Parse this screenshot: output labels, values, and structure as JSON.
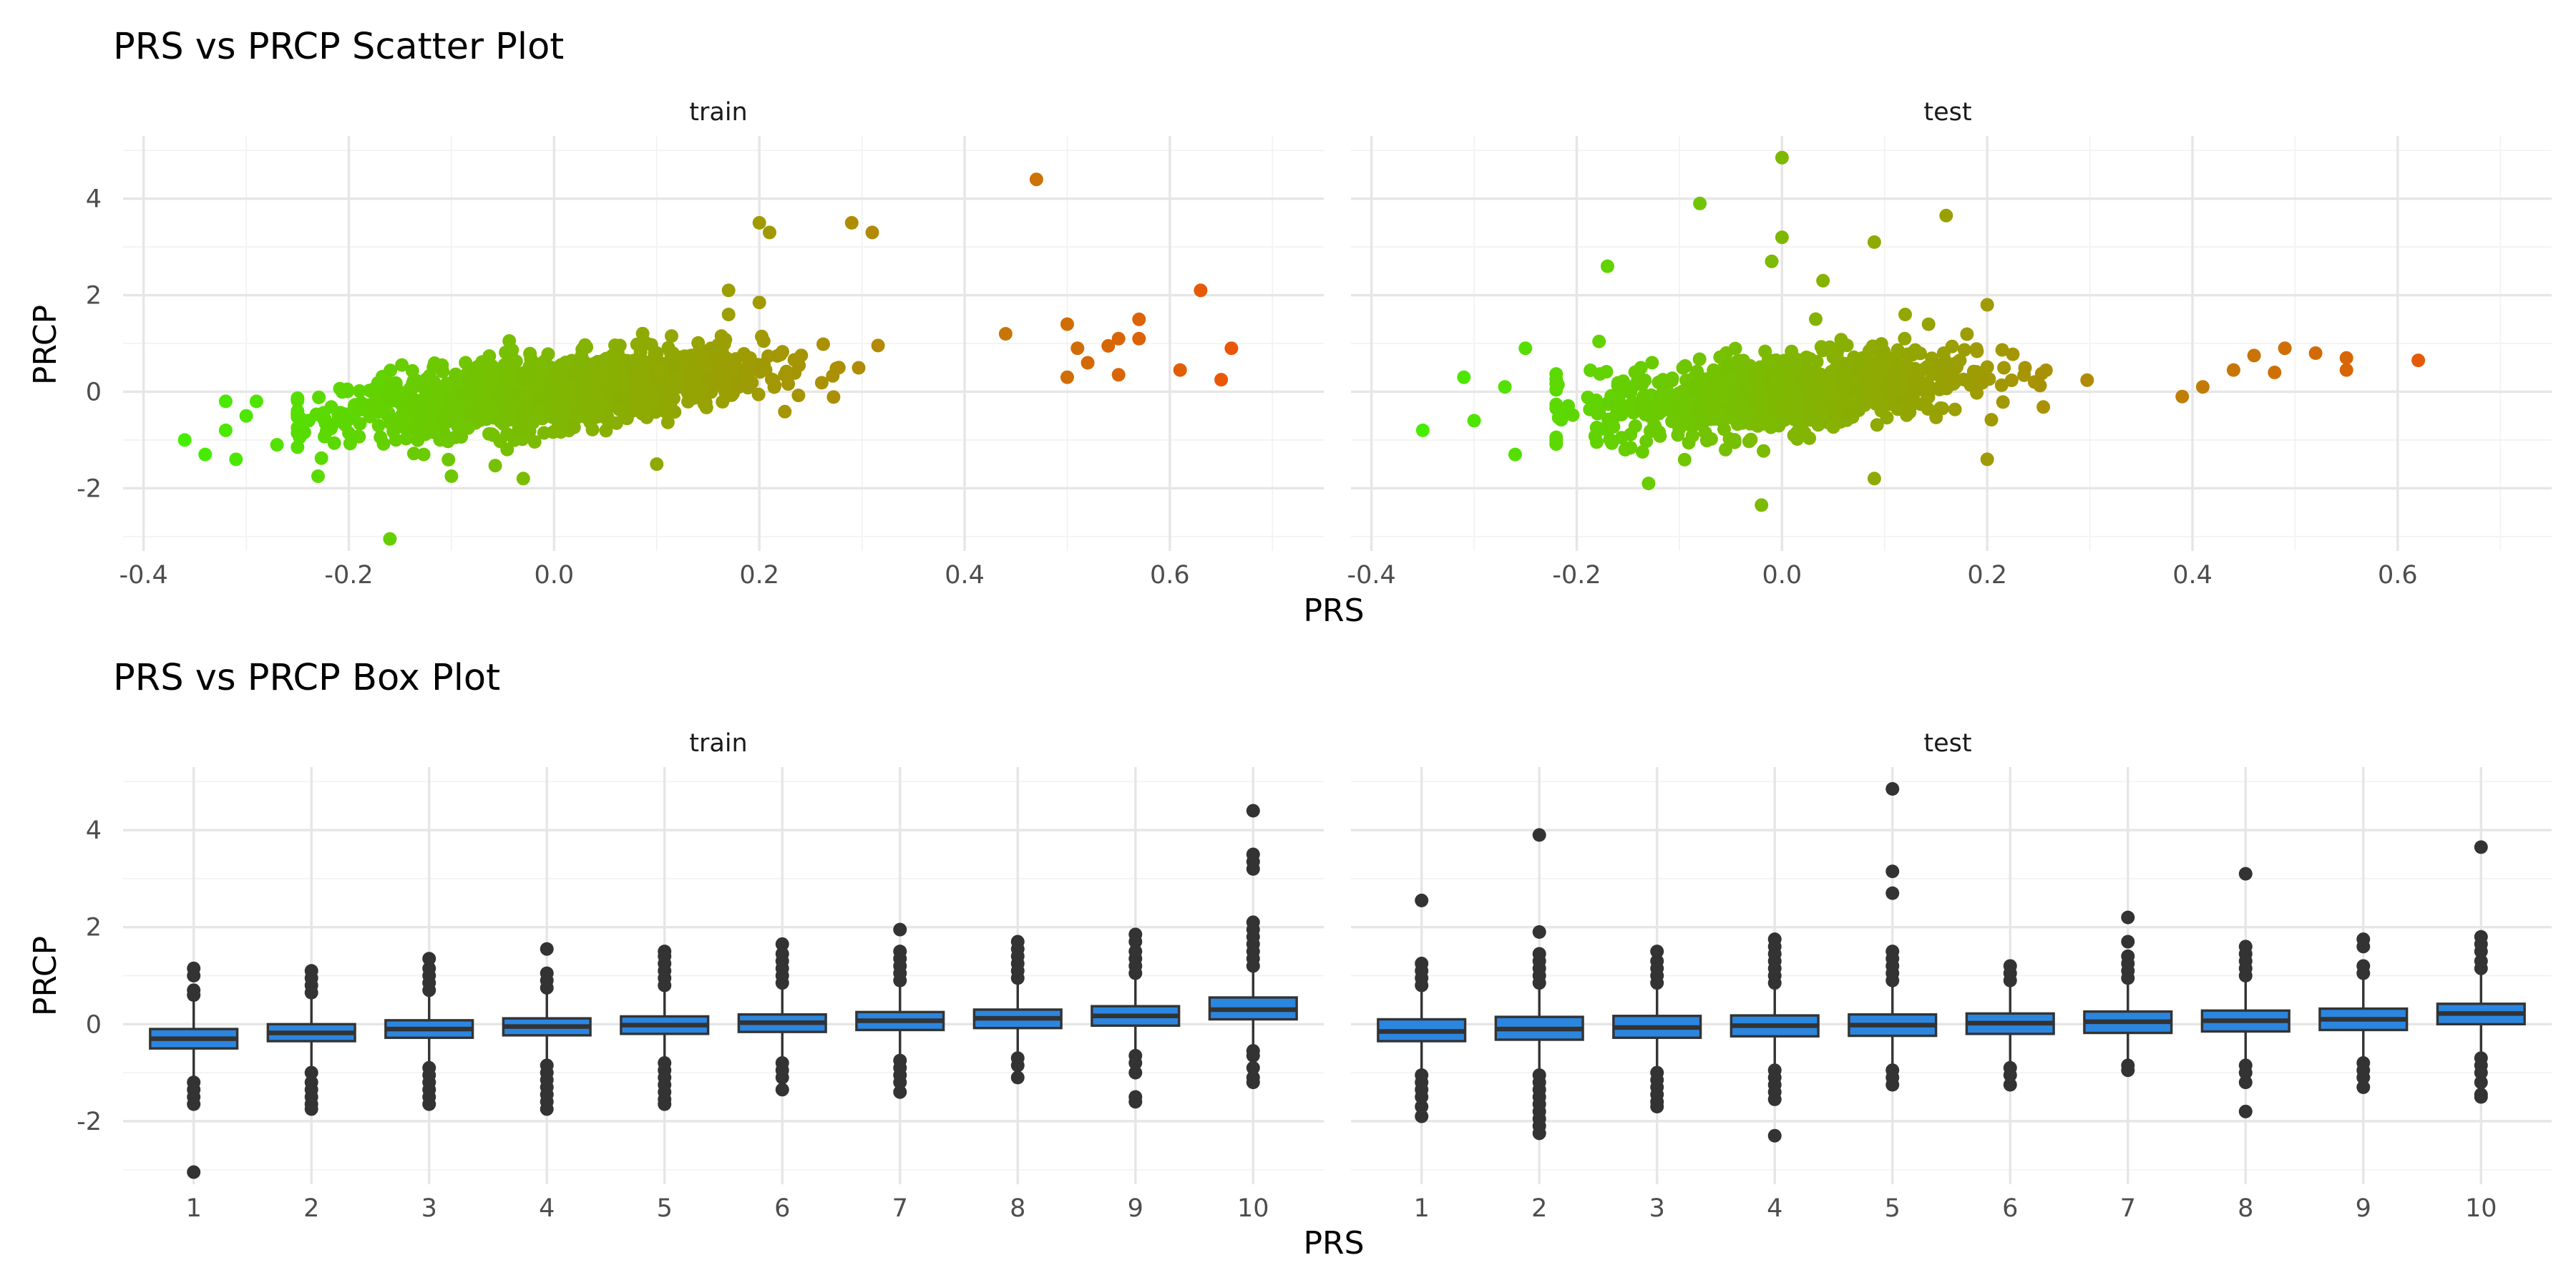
{
  "chart_data": [
    {
      "type": "scatter",
      "title": "PRS vs PRCP Scatter Plot",
      "xlabel": "PRS",
      "ylabel": "PRCP",
      "facets": [
        "train",
        "test"
      ],
      "xlim": [
        -0.42,
        0.75
      ],
      "ylim": [
        -3.3,
        5.3
      ],
      "x_ticks": [
        "-0.4",
        "-0.2",
        "0.0",
        "0.2",
        "0.4",
        "0.6"
      ],
      "y_ticks": [
        "-2",
        "0",
        "2",
        "4"
      ],
      "grid": true,
      "color_gradient": [
        "#44ee00",
        "#eb5507"
      ],
      "trend": {
        "slope": 2.15,
        "intercept": 0.0
      },
      "panels": [
        {
          "name": "train",
          "bulk": {
            "x_range": [
              -0.25,
              0.45
            ],
            "x_mean": 0.0,
            "x_sd": 0.1,
            "y_sd": 0.35,
            "n": 1400
          },
          "points": [
            [
              -0.36,
              -1.0
            ],
            [
              -0.34,
              -1.3
            ],
            [
              -0.32,
              -0.2
            ],
            [
              -0.32,
              -0.8
            ],
            [
              -0.31,
              -1.4
            ],
            [
              -0.3,
              -0.5
            ],
            [
              -0.29,
              -0.2
            ],
            [
              -0.27,
              -1.1
            ],
            [
              -0.23,
              -1.75
            ],
            [
              -0.16,
              -3.05
            ],
            [
              -0.1,
              -1.75
            ],
            [
              -0.03,
              -1.8
            ],
            [
              0.1,
              -1.5
            ],
            [
              0.17,
              1.6
            ],
            [
              0.17,
              2.1
            ],
            [
              0.2,
              1.85
            ],
            [
              0.2,
              3.5
            ],
            [
              0.21,
              3.3
            ],
            [
              0.29,
              3.5
            ],
            [
              0.31,
              3.3
            ],
            [
              0.47,
              4.4
            ],
            [
              0.44,
              1.2
            ],
            [
              0.5,
              1.4
            ],
            [
              0.51,
              0.9
            ],
            [
              0.5,
              0.3
            ],
            [
              0.52,
              0.6
            ],
            [
              0.54,
              0.95
            ],
            [
              0.55,
              1.1
            ],
            [
              0.55,
              0.35
            ],
            [
              0.57,
              1.5
            ],
            [
              0.57,
              1.1
            ],
            [
              0.61,
              0.45
            ],
            [
              0.63,
              2.1
            ],
            [
              0.65,
              0.25
            ],
            [
              0.66,
              0.9
            ]
          ]
        },
        {
          "name": "test",
          "bulk": {
            "x_range": [
              -0.22,
              0.4
            ],
            "x_mean": 0.0,
            "x_sd": 0.09,
            "y_sd": 0.4,
            "n": 1000
          },
          "points": [
            [
              -0.35,
              -0.8
            ],
            [
              -0.31,
              0.3
            ],
            [
              -0.3,
              -0.6
            ],
            [
              -0.27,
              0.1
            ],
            [
              -0.26,
              -1.3
            ],
            [
              -0.25,
              0.9
            ],
            [
              -0.17,
              2.6
            ],
            [
              -0.13,
              -1.9
            ],
            [
              -0.08,
              3.9
            ],
            [
              -0.01,
              2.7
            ],
            [
              0.0,
              4.85
            ],
            [
              0.0,
              3.2
            ],
            [
              0.04,
              2.3
            ],
            [
              0.09,
              3.1
            ],
            [
              0.12,
              1.6
            ],
            [
              0.16,
              3.65
            ],
            [
              0.2,
              1.8
            ],
            [
              -0.02,
              -2.35
            ],
            [
              0.09,
              -1.8
            ],
            [
              0.2,
              -1.4
            ],
            [
              0.39,
              -0.1
            ],
            [
              0.41,
              0.1
            ],
            [
              0.44,
              0.45
            ],
            [
              0.46,
              0.75
            ],
            [
              0.48,
              0.4
            ],
            [
              0.49,
              0.9
            ],
            [
              0.52,
              0.8
            ],
            [
              0.55,
              0.7
            ],
            [
              0.55,
              0.45
            ],
            [
              0.62,
              0.65
            ]
          ]
        }
      ]
    },
    {
      "type": "box",
      "title": "PRS vs PRCP Box Plot",
      "xlabel": "PRS",
      "ylabel": "PRCP",
      "facets": [
        "train",
        "test"
      ],
      "categories": [
        "1",
        "2",
        "3",
        "4",
        "5",
        "6",
        "7",
        "8",
        "9",
        "10"
      ],
      "ylim": [
        -3.3,
        5.3
      ],
      "y_ticks": [
        "-2",
        "0",
        "2",
        "4"
      ],
      "grid": true,
      "box_fill": "#2b86e0",
      "box_stroke": "#333333",
      "panels": [
        {
          "name": "train",
          "boxes": [
            {
              "q1": -0.5,
              "median": -0.3,
              "q3": -0.1,
              "whisker_low": -1.1,
              "whisker_high": 0.5,
              "outliers_low": [
                -1.2,
                -1.35,
                -1.5,
                -1.65,
                -3.05
              ],
              "outliers_high": [
                0.6,
                0.7,
                1.0,
                1.15
              ]
            },
            {
              "q1": -0.35,
              "median": -0.18,
              "q3": 0.0,
              "whisker_low": -0.9,
              "whisker_high": 0.55,
              "outliers_low": [
                -1.0,
                -1.2,
                -1.35,
                -1.5,
                -1.65,
                -1.75
              ],
              "outliers_high": [
                0.65,
                0.8,
                0.95,
                1.1
              ]
            },
            {
              "q1": -0.28,
              "median": -0.1,
              "q3": 0.08,
              "whisker_low": -0.8,
              "whisker_high": 0.6,
              "outliers_low": [
                -0.9,
                -1.05,
                -1.2,
                -1.35,
                -1.5,
                -1.65
              ],
              "outliers_high": [
                0.7,
                0.85,
                1.0,
                1.15,
                1.35
              ]
            },
            {
              "q1": -0.23,
              "median": -0.05,
              "q3": 0.12,
              "whisker_low": -0.75,
              "whisker_high": 0.65,
              "outliers_low": [
                -0.85,
                -1.0,
                -1.15,
                -1.3,
                -1.45,
                -1.6,
                -1.75
              ],
              "outliers_high": [
                0.75,
                0.9,
                1.05,
                1.55
              ]
            },
            {
              "q1": -0.2,
              "median": -0.02,
              "q3": 0.16,
              "whisker_low": -0.7,
              "whisker_high": 0.7,
              "outliers_low": [
                -0.8,
                -0.95,
                -1.1,
                -1.25,
                -1.4,
                -1.55,
                -1.65
              ],
              "outliers_high": [
                0.8,
                0.95,
                1.1,
                1.25,
                1.4,
                1.5
              ]
            },
            {
              "q1": -0.16,
              "median": 0.03,
              "q3": 0.2,
              "whisker_low": -0.7,
              "whisker_high": 0.75,
              "outliers_low": [
                -0.8,
                -0.95,
                -1.1,
                -1.35
              ],
              "outliers_high": [
                0.85,
                1.0,
                1.15,
                1.3,
                1.45,
                1.65
              ]
            },
            {
              "q1": -0.12,
              "median": 0.07,
              "q3": 0.25,
              "whisker_low": -0.65,
              "whisker_high": 0.8,
              "outliers_low": [
                -0.75,
                -0.9,
                -1.05,
                -1.2,
                -1.4
              ],
              "outliers_high": [
                0.9,
                1.05,
                1.2,
                1.35,
                1.5,
                1.95
              ]
            },
            {
              "q1": -0.08,
              "median": 0.12,
              "q3": 0.3,
              "whisker_low": -0.6,
              "whisker_high": 0.85,
              "outliers_low": [
                -0.7,
                -0.85,
                -1.1
              ],
              "outliers_high": [
                0.95,
                1.1,
                1.25,
                1.4,
                1.55,
                1.7
              ]
            },
            {
              "q1": -0.03,
              "median": 0.17,
              "q3": 0.37,
              "whisker_low": -0.55,
              "whisker_high": 0.95,
              "outliers_low": [
                -0.65,
                -0.8,
                -1.0,
                -1.5,
                -1.6
              ],
              "outliers_high": [
                1.05,
                1.2,
                1.35,
                1.5,
                1.7,
                1.85
              ]
            },
            {
              "q1": 0.1,
              "median": 0.3,
              "q3": 0.55,
              "whisker_low": -0.45,
              "whisker_high": 1.1,
              "outliers_low": [
                -0.55,
                -0.65,
                -0.9,
                -1.1,
                -1.2
              ],
              "outliers_high": [
                1.2,
                1.35,
                1.5,
                1.65,
                1.8,
                1.95,
                2.1,
                3.2,
                3.35,
                3.5,
                4.4
              ]
            }
          ]
        },
        {
          "name": "test",
          "boxes": [
            {
              "q1": -0.35,
              "median": -0.15,
              "q3": 0.1,
              "whisker_low": -0.95,
              "whisker_high": 0.7,
              "outliers_low": [
                -1.05,
                -1.2,
                -1.35,
                -1.5,
                -1.7,
                -1.9
              ],
              "outliers_high": [
                0.8,
                0.95,
                1.1,
                1.25,
                2.55
              ]
            },
            {
              "q1": -0.32,
              "median": -0.1,
              "q3": 0.15,
              "whisker_low": -0.95,
              "whisker_high": 0.75,
              "outliers_low": [
                -1.05,
                -1.2,
                -1.35,
                -1.5,
                -1.65,
                -1.8,
                -1.95,
                -2.1,
                -2.25
              ],
              "outliers_high": [
                0.85,
                1.0,
                1.15,
                1.3,
                1.45,
                1.9,
                3.9
              ]
            },
            {
              "q1": -0.28,
              "median": -0.07,
              "q3": 0.17,
              "whisker_low": -0.9,
              "whisker_high": 0.75,
              "outliers_low": [
                -1.0,
                -1.15,
                -1.3,
                -1.45,
                -1.6,
                -1.7
              ],
              "outliers_high": [
                0.85,
                1.0,
                1.15,
                1.3,
                1.5
              ]
            },
            {
              "q1": -0.25,
              "median": -0.03,
              "q3": 0.18,
              "whisker_low": -0.85,
              "whisker_high": 0.75,
              "outliers_low": [
                -0.95,
                -1.1,
                -1.25,
                -1.4,
                -1.55,
                -2.3
              ],
              "outliers_high": [
                0.85,
                1.0,
                1.15,
                1.3,
                1.45,
                1.6,
                1.75
              ]
            },
            {
              "q1": -0.24,
              "median": -0.02,
              "q3": 0.2,
              "whisker_low": -0.85,
              "whisker_high": 0.8,
              "outliers_low": [
                -0.95,
                -1.1,
                -1.25
              ],
              "outliers_high": [
                0.9,
                1.05,
                1.2,
                1.35,
                1.5,
                2.7,
                3.15,
                4.85
              ]
            },
            {
              "q1": -0.2,
              "median": 0.02,
              "q3": 0.22,
              "whisker_low": -0.8,
              "whisker_high": 0.8,
              "outliers_low": [
                -0.9,
                -1.05,
                -1.25
              ],
              "outliers_high": [
                0.9,
                1.05,
                1.2
              ]
            },
            {
              "q1": -0.18,
              "median": 0.05,
              "q3": 0.26,
              "whisker_low": -0.75,
              "whisker_high": 0.85,
              "outliers_low": [
                -0.85,
                -0.95
              ],
              "outliers_high": [
                0.95,
                1.1,
                1.25,
                1.4,
                1.7,
                2.2
              ]
            },
            {
              "q1": -0.15,
              "median": 0.07,
              "q3": 0.28,
              "whisker_low": -0.75,
              "whisker_high": 0.9,
              "outliers_low": [
                -0.85,
                -1.0,
                -1.2,
                -1.8
              ],
              "outliers_high": [
                1.0,
                1.15,
                1.3,
                1.45,
                1.6,
                3.1
              ]
            },
            {
              "q1": -0.12,
              "median": 0.1,
              "q3": 0.32,
              "whisker_low": -0.7,
              "whisker_high": 0.95,
              "outliers_low": [
                -0.8,
                -0.95,
                -1.1,
                -1.3
              ],
              "outliers_high": [
                1.05,
                1.2,
                1.6,
                1.75
              ]
            },
            {
              "q1": 0.0,
              "median": 0.22,
              "q3": 0.42,
              "whisker_low": -0.6,
              "whisker_high": 1.05,
              "outliers_low": [
                -0.7,
                -0.85,
                -1.0,
                -1.2,
                -1.45,
                -1.5
              ],
              "outliers_high": [
                1.15,
                1.3,
                1.5,
                1.65,
                1.8,
                3.65
              ]
            }
          ]
        }
      ]
    }
  ]
}
